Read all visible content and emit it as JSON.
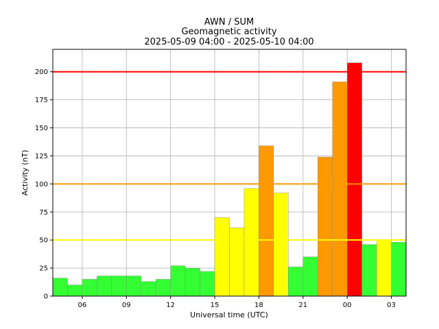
{
  "chart_data": {
    "type": "bar",
    "title_lines": [
      "AWN / SUM",
      "Geomagnetic activity",
      "2025-05-09 04:00 - 2025-05-10 04:00"
    ],
    "xlabel": "Universal time (UTC)",
    "ylabel": "Activity (nT)",
    "ylim": [
      0,
      220
    ],
    "yticks": [
      0,
      25,
      50,
      75,
      100,
      125,
      150,
      175,
      200
    ],
    "xlim": [
      4,
      28
    ],
    "xticks": [
      {
        "hour": 6,
        "label": "06"
      },
      {
        "hour": 9,
        "label": "09"
      },
      {
        "hour": 12,
        "label": "12"
      },
      {
        "hour": 15,
        "label": "15"
      },
      {
        "hour": 18,
        "label": "18"
      },
      {
        "hour": 21,
        "label": "21"
      },
      {
        "hour": 24,
        "label": "00"
      },
      {
        "hour": 27,
        "label": "03"
      }
    ],
    "bars": [
      {
        "hour": 4,
        "value": 16,
        "color": "#33ff33"
      },
      {
        "hour": 5,
        "value": 10,
        "color": "#33ff33"
      },
      {
        "hour": 6,
        "value": 15,
        "color": "#33ff33"
      },
      {
        "hour": 7,
        "value": 18,
        "color": "#33ff33"
      },
      {
        "hour": 8,
        "value": 18,
        "color": "#33ff33"
      },
      {
        "hour": 9,
        "value": 18,
        "color": "#33ff33"
      },
      {
        "hour": 10,
        "value": 13,
        "color": "#33ff33"
      },
      {
        "hour": 11,
        "value": 15,
        "color": "#33ff33"
      },
      {
        "hour": 12,
        "value": 27,
        "color": "#33ff33"
      },
      {
        "hour": 13,
        "value": 25,
        "color": "#33ff33"
      },
      {
        "hour": 14,
        "value": 22,
        "color": "#33ff33"
      },
      {
        "hour": 15,
        "value": 70,
        "color": "#ffff00"
      },
      {
        "hour": 16,
        "value": 61,
        "color": "#ffff00"
      },
      {
        "hour": 17,
        "value": 96,
        "color": "#ffff00"
      },
      {
        "hour": 18,
        "value": 134,
        "color": "#ff9900"
      },
      {
        "hour": 19,
        "value": 92,
        "color": "#ffff00"
      },
      {
        "hour": 20,
        "value": 26,
        "color": "#33ff33"
      },
      {
        "hour": 21,
        "value": 35,
        "color": "#33ff33"
      },
      {
        "hour": 22,
        "value": 124,
        "color": "#ff9900"
      },
      {
        "hour": 23,
        "value": 191,
        "color": "#ff9900"
      },
      {
        "hour": 24,
        "value": 208,
        "color": "#ff0000"
      },
      {
        "hour": 25,
        "value": 46,
        "color": "#33ff33"
      },
      {
        "hour": 26,
        "value": 50,
        "color": "#ffff00"
      },
      {
        "hour": 27,
        "value": 48,
        "color": "#33ff33"
      }
    ],
    "threshold_lines": [
      {
        "value": 50,
        "color": "#ffff00"
      },
      {
        "value": 100,
        "color": "#ff9900"
      },
      {
        "value": 200,
        "color": "#ff0000"
      }
    ],
    "grid": true
  }
}
